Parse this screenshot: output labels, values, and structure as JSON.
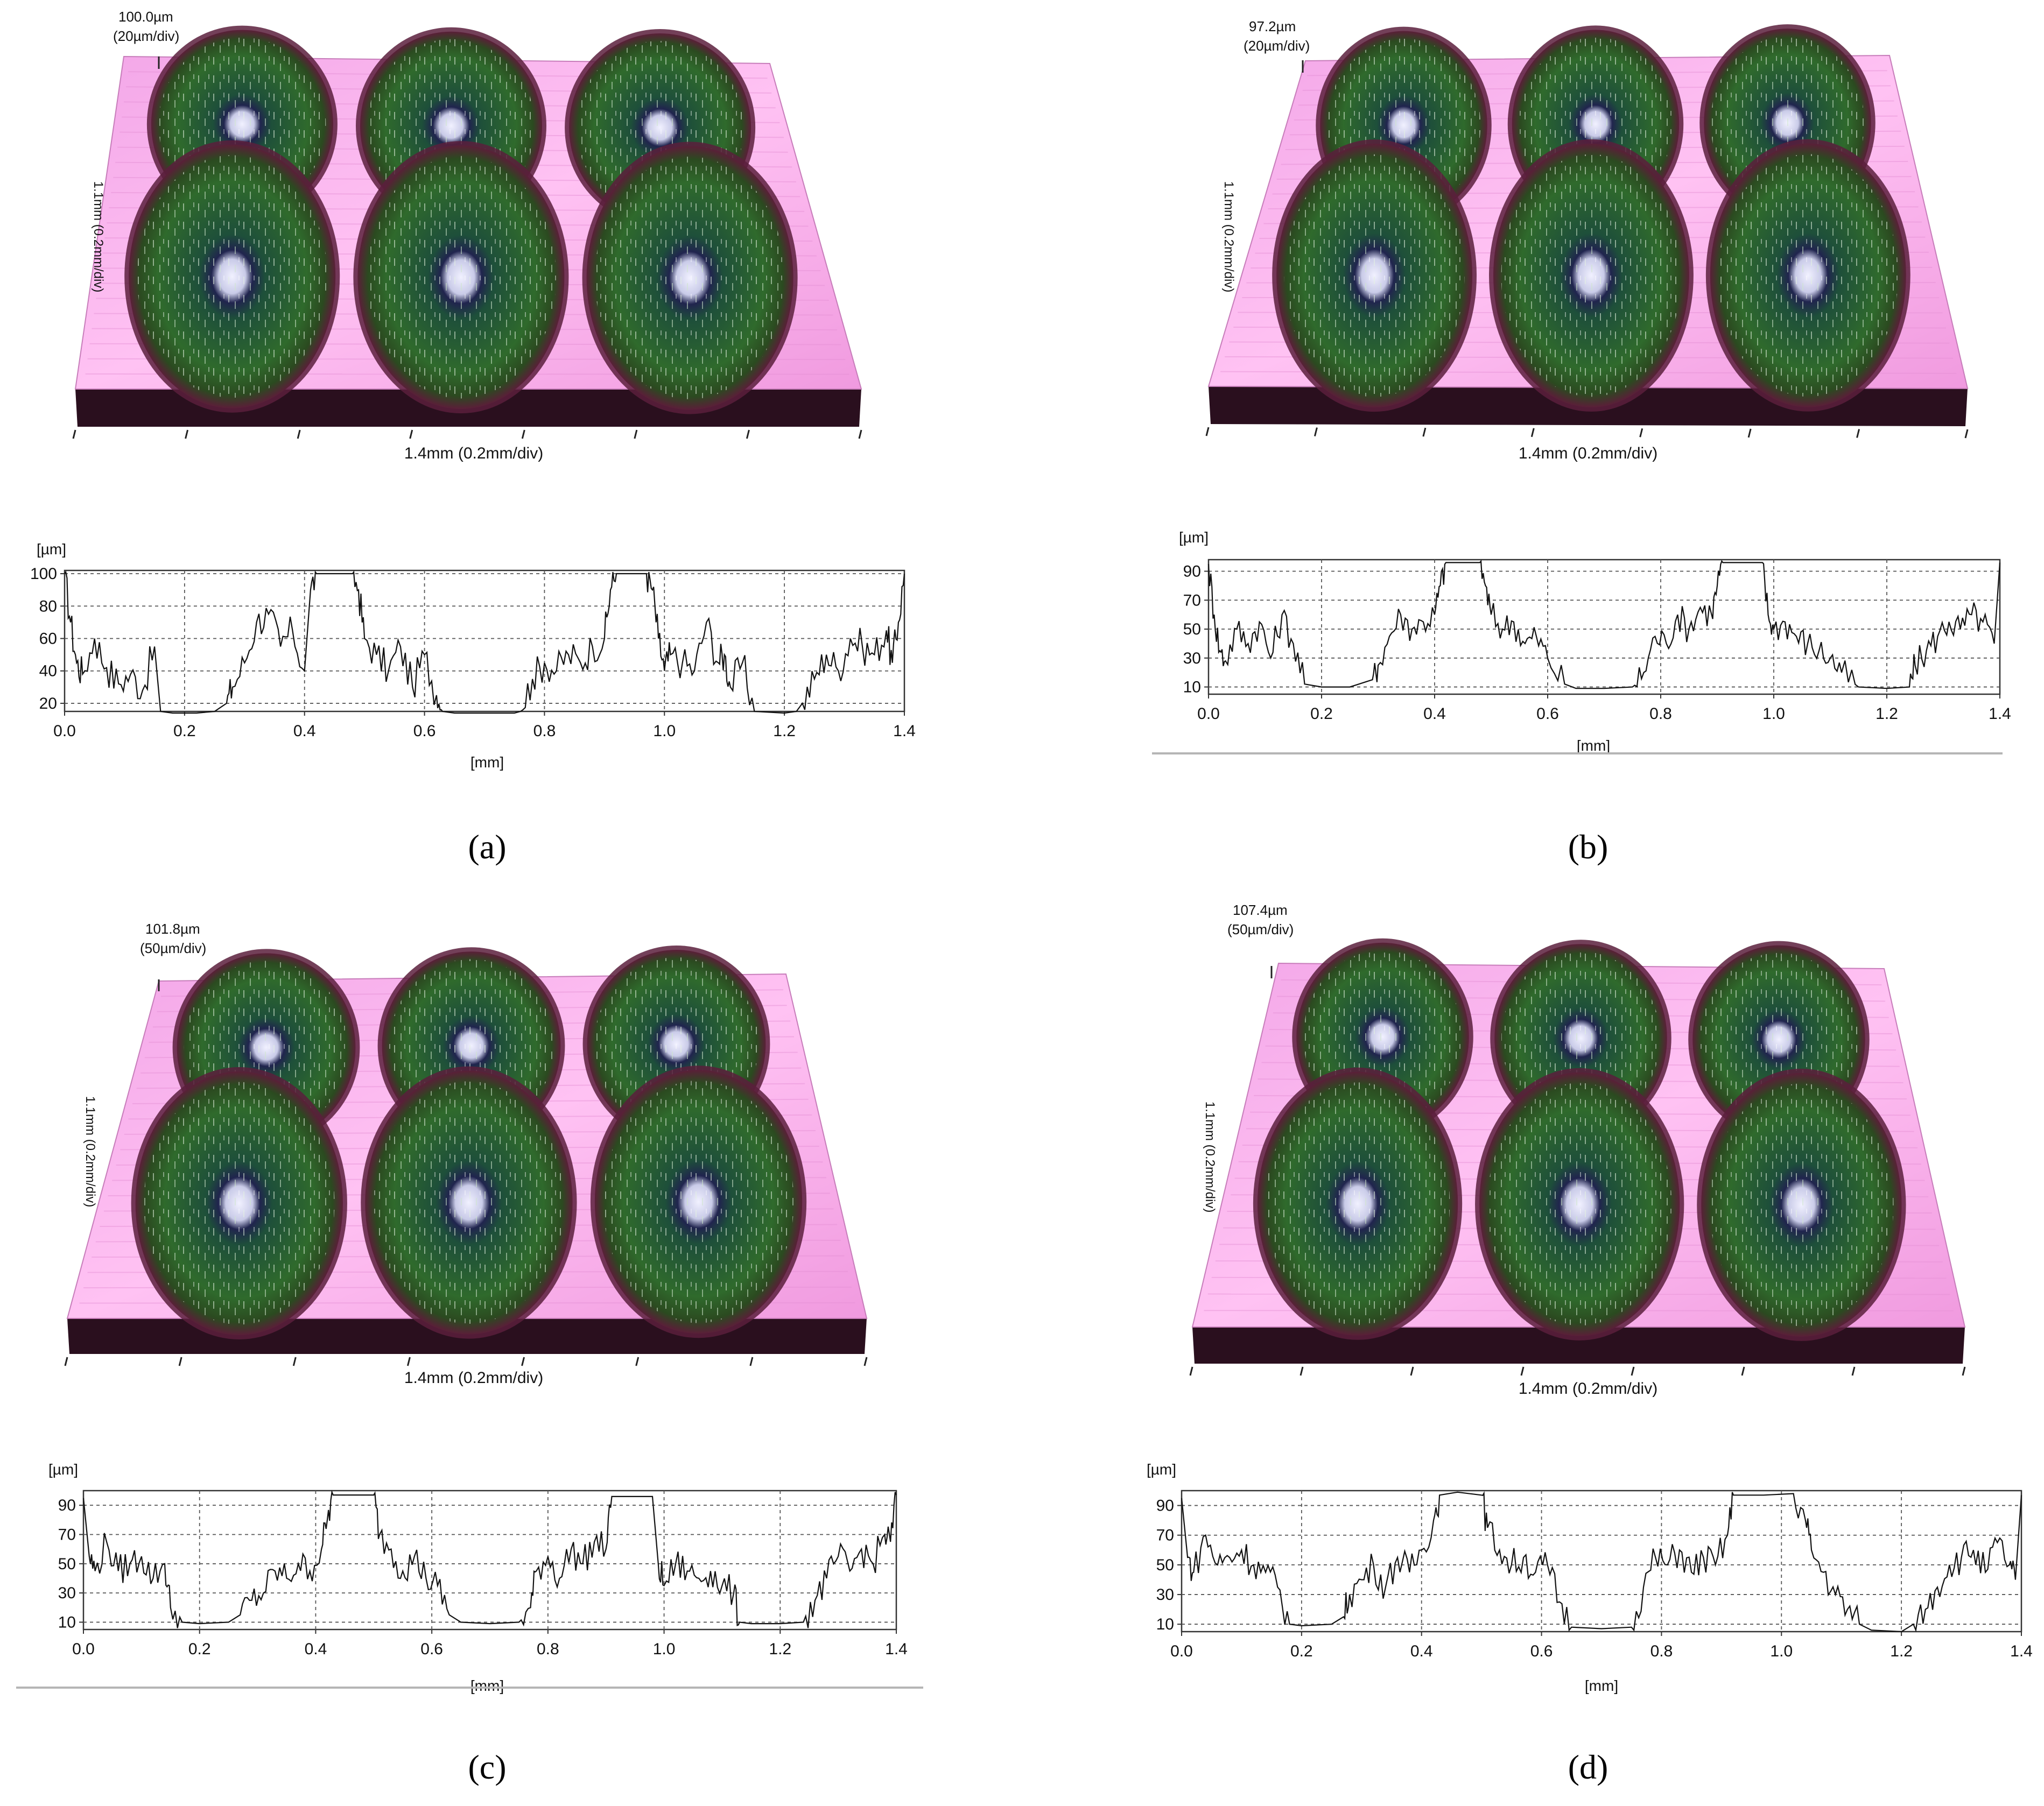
{
  "panels": [
    {
      "id": "a",
      "caption": "(a)",
      "height_label": "100.0µm",
      "height_div_label": "(20µm/div)",
      "width_label": "1.4mm (0.2mm/div)",
      "depth_label": "1.1mm (0.2mm/div)"
    },
    {
      "id": "b",
      "caption": "(b)",
      "height_label": "97.2µm",
      "height_div_label": "(20µm/div)",
      "width_label": "1.4mm (0.2mm/div)",
      "depth_label": "1.1mm (0.2mm/div)"
    },
    {
      "id": "c",
      "caption": "(c)",
      "height_label": "101.8µm",
      "height_div_label": "(50µm/div)",
      "width_label": "1.4mm (0.2mm/div)",
      "depth_label": "1.1mm (0.2mm/div)"
    },
    {
      "id": "d",
      "caption": "(d)",
      "height_label": "107.4µm",
      "height_div_label": "(50µm/div)",
      "width_label": "1.4mm (0.2mm/div)",
      "depth_label": "1.1mm (0.2mm/div)"
    }
  ],
  "chart_data": [
    {
      "type": "line",
      "panel": "a",
      "ylabel": "[µm]",
      "xlabel": "[mm]",
      "xlim": [
        0,
        1.4
      ],
      "ylim": [
        15,
        102
      ],
      "xticks": [
        0.0,
        0.2,
        0.4,
        0.6,
        0.8,
        1.0,
        1.2,
        1.4
      ],
      "yticks": [
        20,
        40,
        60,
        80,
        100
      ],
      "grid": true,
      "series": [
        {
          "x": [
            0.0,
            0.01,
            0.02,
            0.03,
            0.05,
            0.07,
            0.09,
            0.11,
            0.13,
            0.15,
            0.16,
            0.18,
            0.2,
            0.22,
            0.25,
            0.27,
            0.28,
            0.3,
            0.32,
            0.34,
            0.36,
            0.38,
            0.4,
            0.41,
            0.42,
            0.45,
            0.48,
            0.49,
            0.5,
            0.52,
            0.54,
            0.56,
            0.58,
            0.6,
            0.62,
            0.63,
            0.65,
            0.7,
            0.75,
            0.76,
            0.78,
            0.8,
            0.82,
            0.84,
            0.86,
            0.88,
            0.9,
            0.91,
            0.92,
            0.95,
            0.97,
            0.98,
            0.99,
            1.0,
            1.01,
            1.03,
            1.05,
            1.07,
            1.09,
            1.1,
            1.11,
            1.13,
            1.15,
            1.2,
            1.22,
            1.23,
            1.25,
            1.27,
            1.29,
            1.31,
            1.33,
            1.35,
            1.37,
            1.38,
            1.39,
            1.4
          ],
          "y": [
            100,
            70,
            45,
            38,
            60,
            42,
            32,
            38,
            28,
            55,
            15,
            14,
            14,
            14,
            15,
            20,
            30,
            45,
            70,
            75,
            55,
            65,
            40,
            90,
            100,
            100,
            100,
            90,
            60,
            50,
            40,
            55,
            30,
            50,
            25,
            15,
            14,
            14,
            14,
            15,
            35,
            45,
            40,
            50,
            45,
            55,
            60,
            90,
            100,
            100,
            100,
            90,
            60,
            40,
            50,
            45,
            40,
            70,
            45,
            50,
            30,
            45,
            15,
            14,
            15,
            20,
            35,
            50,
            40,
            60,
            55,
            50,
            65,
            45,
            70,
            100
          ]
        }
      ]
    },
    {
      "type": "line",
      "panel": "b",
      "ylabel": "[µm]",
      "xlabel": "[mm]",
      "xlim": [
        0,
        1.4
      ],
      "ylim": [
        5,
        98
      ],
      "xticks": [
        0.0,
        0.2,
        0.4,
        0.6,
        0.8,
        1.0,
        1.2,
        1.4
      ],
      "yticks": [
        10,
        30,
        50,
        70,
        90
      ],
      "grid": true,
      "series": [
        {
          "x": [
            0.0,
            0.01,
            0.02,
            0.03,
            0.05,
            0.07,
            0.09,
            0.11,
            0.13,
            0.15,
            0.17,
            0.2,
            0.25,
            0.29,
            0.3,
            0.32,
            0.34,
            0.36,
            0.38,
            0.4,
            0.41,
            0.42,
            0.45,
            0.48,
            0.49,
            0.5,
            0.52,
            0.54,
            0.56,
            0.58,
            0.6,
            0.63,
            0.65,
            0.7,
            0.75,
            0.77,
            0.79,
            0.81,
            0.83,
            0.85,
            0.87,
            0.89,
            0.9,
            0.91,
            0.95,
            0.98,
            0.99,
            1.0,
            1.02,
            1.04,
            1.06,
            1.08,
            1.1,
            1.12,
            1.15,
            1.2,
            1.24,
            1.25,
            1.27,
            1.29,
            1.31,
            1.33,
            1.35,
            1.37,
            1.39,
            1.4
          ],
          "y": [
            95,
            60,
            35,
            28,
            50,
            40,
            55,
            30,
            60,
            40,
            12,
            10,
            10,
            15,
            25,
            45,
            60,
            50,
            55,
            60,
            80,
            96,
            96,
            96,
            80,
            60,
            50,
            55,
            40,
            45,
            30,
            12,
            9,
            9,
            10,
            20,
            45,
            40,
            60,
            50,
            65,
            60,
            80,
            96,
            96,
            96,
            60,
            50,
            55,
            45,
            40,
            35,
            30,
            20,
            10,
            9,
            10,
            25,
            35,
            45,
            55,
            50,
            60,
            55,
            40,
            96
          ]
        }
      ]
    },
    {
      "type": "line",
      "panel": "c",
      "ylabel": "[µm]",
      "xlabel": "[mm]",
      "xlim": [
        0,
        1.4
      ],
      "ylim": [
        5,
        100
      ],
      "xticks": [
        0.0,
        0.2,
        0.4,
        0.6,
        0.8,
        1.0,
        1.2,
        1.4
      ],
      "yticks": [
        10,
        30,
        50,
        70,
        90
      ],
      "grid": true,
      "series": [
        {
          "x": [
            0.0,
            0.01,
            0.02,
            0.04,
            0.06,
            0.08,
            0.1,
            0.12,
            0.14,
            0.15,
            0.17,
            0.2,
            0.25,
            0.27,
            0.29,
            0.31,
            0.33,
            0.35,
            0.37,
            0.39,
            0.41,
            0.42,
            0.43,
            0.46,
            0.5,
            0.51,
            0.53,
            0.55,
            0.57,
            0.59,
            0.61,
            0.63,
            0.65,
            0.7,
            0.75,
            0.77,
            0.78,
            0.8,
            0.82,
            0.84,
            0.86,
            0.88,
            0.9,
            0.91,
            0.95,
            0.98,
            0.99,
            1.0,
            1.02,
            1.04,
            1.06,
            1.08,
            1.1,
            1.12,
            1.13,
            1.15,
            1.2,
            1.24,
            1.26,
            1.28,
            1.3,
            1.32,
            1.34,
            1.36,
            1.38,
            1.39,
            1.4
          ],
          "y": [
            95,
            55,
            45,
            65,
            45,
            50,
            55,
            40,
            50,
            20,
            10,
            9,
            10,
            15,
            25,
            30,
            45,
            40,
            50,
            45,
            60,
            80,
            97,
            97,
            97,
            70,
            60,
            45,
            55,
            40,
            35,
            15,
            10,
            9,
            10,
            20,
            45,
            55,
            40,
            60,
            50,
            65,
            60,
            96,
            96,
            96,
            50,
            35,
            50,
            45,
            40,
            45,
            35,
            30,
            10,
            9,
            9,
            10,
            25,
            40,
            55,
            45,
            60,
            50,
            70,
            65,
            97
          ]
        }
      ]
    },
    {
      "type": "line",
      "panel": "d",
      "ylabel": "[µm]",
      "xlabel": "[mm]",
      "xlim": [
        0,
        1.4
      ],
      "ylim": [
        5,
        100
      ],
      "xticks": [
        0.0,
        0.2,
        0.4,
        0.6,
        0.8,
        1.0,
        1.2,
        1.4
      ],
      "yticks": [
        10,
        30,
        50,
        70,
        90
      ],
      "grid": true,
      "series": [
        {
          "x": [
            0.0,
            0.01,
            0.02,
            0.04,
            0.06,
            0.08,
            0.1,
            0.12,
            0.14,
            0.16,
            0.18,
            0.2,
            0.25,
            0.27,
            0.28,
            0.3,
            0.32,
            0.34,
            0.36,
            0.38,
            0.4,
            0.42,
            0.43,
            0.46,
            0.5,
            0.51,
            0.53,
            0.55,
            0.57,
            0.59,
            0.61,
            0.63,
            0.65,
            0.7,
            0.75,
            0.77,
            0.79,
            0.81,
            0.83,
            0.85,
            0.87,
            0.89,
            0.91,
            0.92,
            0.97,
            1.02,
            1.04,
            1.05,
            1.07,
            1.09,
            1.11,
            1.13,
            1.15,
            1.2,
            1.22,
            1.24,
            1.26,
            1.28,
            1.3,
            1.32,
            1.34,
            1.36,
            1.38,
            1.39,
            1.4
          ],
          "y": [
            95,
            55,
            45,
            70,
            50,
            55,
            60,
            50,
            45,
            35,
            10,
            9,
            10,
            15,
            30,
            40,
            50,
            35,
            55,
            45,
            60,
            80,
            97,
            99,
            97,
            75,
            60,
            50,
            55,
            45,
            50,
            25,
            8,
            7,
            8,
            35,
            55,
            50,
            60,
            45,
            55,
            50,
            70,
            97,
            97,
            98,
            80,
            60,
            45,
            30,
            20,
            10,
            6,
            5,
            10,
            20,
            35,
            50,
            55,
            60,
            45,
            65,
            50,
            40,
            97
          ]
        }
      ]
    }
  ]
}
